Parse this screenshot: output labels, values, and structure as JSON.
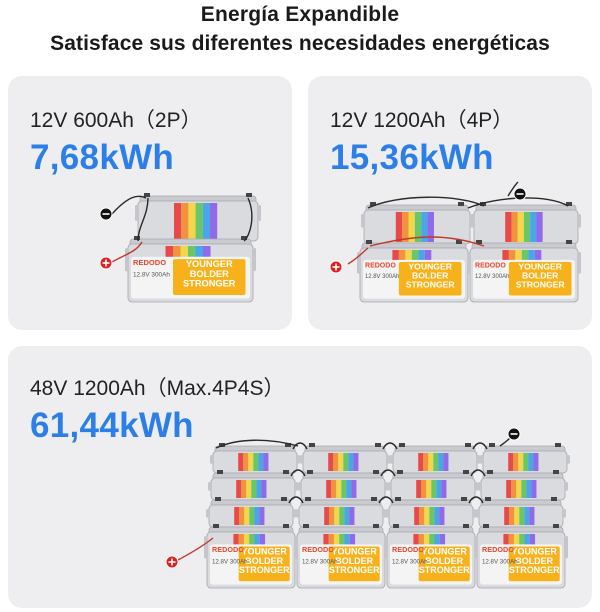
{
  "header": {
    "title": "Energía Expandible",
    "subtitle": "Satisface sus diferentes necesidades energéticas"
  },
  "panels": [
    {
      "config": "12V 600Ah（2P）",
      "energy": "7,68kWh",
      "battery_count": 2
    },
    {
      "config": "12V 1200Ah（4P）",
      "energy": "15,36kWh",
      "battery_count": 4
    },
    {
      "config": "48V 1200Ah（Max.4P4S）",
      "energy": "61,44kWh",
      "battery_count": 16
    }
  ],
  "battery": {
    "brand": "REDODO",
    "slogan": [
      "YOUNGER",
      "BOLDER",
      "STRONGER"
    ],
    "rating": "12.8V",
    "capacity": "300Ah"
  },
  "colors": {
    "accent": "#2d7fe8",
    "panel_bg": "#eeeef0",
    "positive_terminal": "#e02020",
    "negative_terminal": "#111111"
  }
}
